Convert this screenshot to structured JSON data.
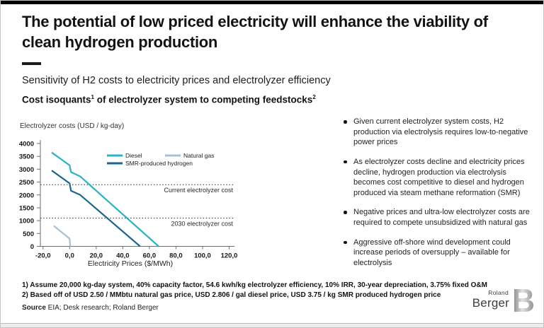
{
  "slide": {
    "title": "The potential of low priced electricity will enhance the viability of clean hydrogen production",
    "subtitle": "Sensitivity of H2 costs to electricity prices and electrolyzer efficiency",
    "chart_heading": {
      "text1": "Cost isoquants",
      "sup1": "1",
      "text2": " of electrolyzer system to competing feedstocks",
      "sup2": "2"
    }
  },
  "bullets": [
    "Given current electrolyzer system costs, H2 production via electrolysis requires low-to-negative power prices",
    "As electrolyzer costs decline and electricity prices decline, hydrogen production via electrolysis becomes cost competitive to diesel and hydrogen produced via steam methane reformation (SMR)",
    "Negative prices and ultra-low electrolyzer costs are required to compete unsubsidized with natural gas",
    "Aggressive off-shore wind development could increase periods of oversupply – available for electrolysis"
  ],
  "footnotes": [
    "1) Assume 20,000 kg-day system, 40% capacity factor, 54.6 kwh/kg electrolyzer efficiency, 10% IRR, 30-year depreciation, 3.75% fixed O&M",
    "2) Based off of USD 2.50 / MMbtu natural gas price, USD 2.806 / gal diesel price, USD 3.75 / kg SMR produced hydrogen price"
  ],
  "source": {
    "label": "Source",
    "text": " EIA; Desk research; Roland Berger"
  },
  "logo": {
    "name_top": "Roland",
    "name_bottom": "Berger",
    "mark": "B"
  },
  "chart_data": {
    "type": "line",
    "title": "Cost isoquants of electrolyzer system to competing feedstocks",
    "ylabel": "Electrolyzer costs (USD / kg-day)",
    "xlabel": "Electricity Prices ($/MWh)",
    "xlim": [
      -22,
      124
    ],
    "ylim": [
      0,
      4000
    ],
    "grid": false,
    "legend_position": "top-center, two columns",
    "x_ticks": [
      {
        "value": -20,
        "label": "-20,0"
      },
      {
        "value": 0,
        "label": "0,0"
      },
      {
        "value": 20,
        "label": "20,0"
      },
      {
        "value": 40,
        "label": "40,0"
      },
      {
        "value": 60,
        "label": "60,0"
      },
      {
        "value": 80,
        "label": "80,0"
      },
      {
        "value": 100,
        "label": "100,0"
      },
      {
        "value": 120,
        "label": "120,0"
      }
    ],
    "y_ticks": [
      {
        "value": 0,
        "label": "0"
      },
      {
        "value": 500,
        "label": "500"
      },
      {
        "value": 1000,
        "label": "1000"
      },
      {
        "value": 1500,
        "label": "1500"
      },
      {
        "value": 2000,
        "label": "2000"
      },
      {
        "value": 2500,
        "label": "2500"
      },
      {
        "value": 3000,
        "label": "3000"
      },
      {
        "value": 3500,
        "label": "3500"
      },
      {
        "value": 4000,
        "label": "4000"
      }
    ],
    "series": [
      {
        "name": "Diesel",
        "color": "#29b4c6",
        "points": [
          [
            -13.5,
            3650
          ],
          [
            0,
            3150
          ],
          [
            1,
            2890
          ],
          [
            8,
            2720
          ],
          [
            67,
            0
          ]
        ]
      },
      {
        "name": "SMR-produced hydrogen",
        "color": "#1a6690",
        "points": [
          [
            -13.5,
            2950
          ],
          [
            0,
            2450
          ],
          [
            1,
            2160
          ],
          [
            8,
            2000
          ],
          [
            53,
            0
          ]
        ]
      },
      {
        "name": "Natural gas",
        "color": "#a9c0d2",
        "points": [
          [
            -12,
            800
          ],
          [
            0,
            300
          ],
          [
            0.5,
            0
          ]
        ]
      }
    ],
    "reference_lines": [
      {
        "label": "Current electrolyzer cost",
        "value": 2400
      },
      {
        "label": "2030 electrolyzer cost",
        "value": 1100
      }
    ]
  }
}
